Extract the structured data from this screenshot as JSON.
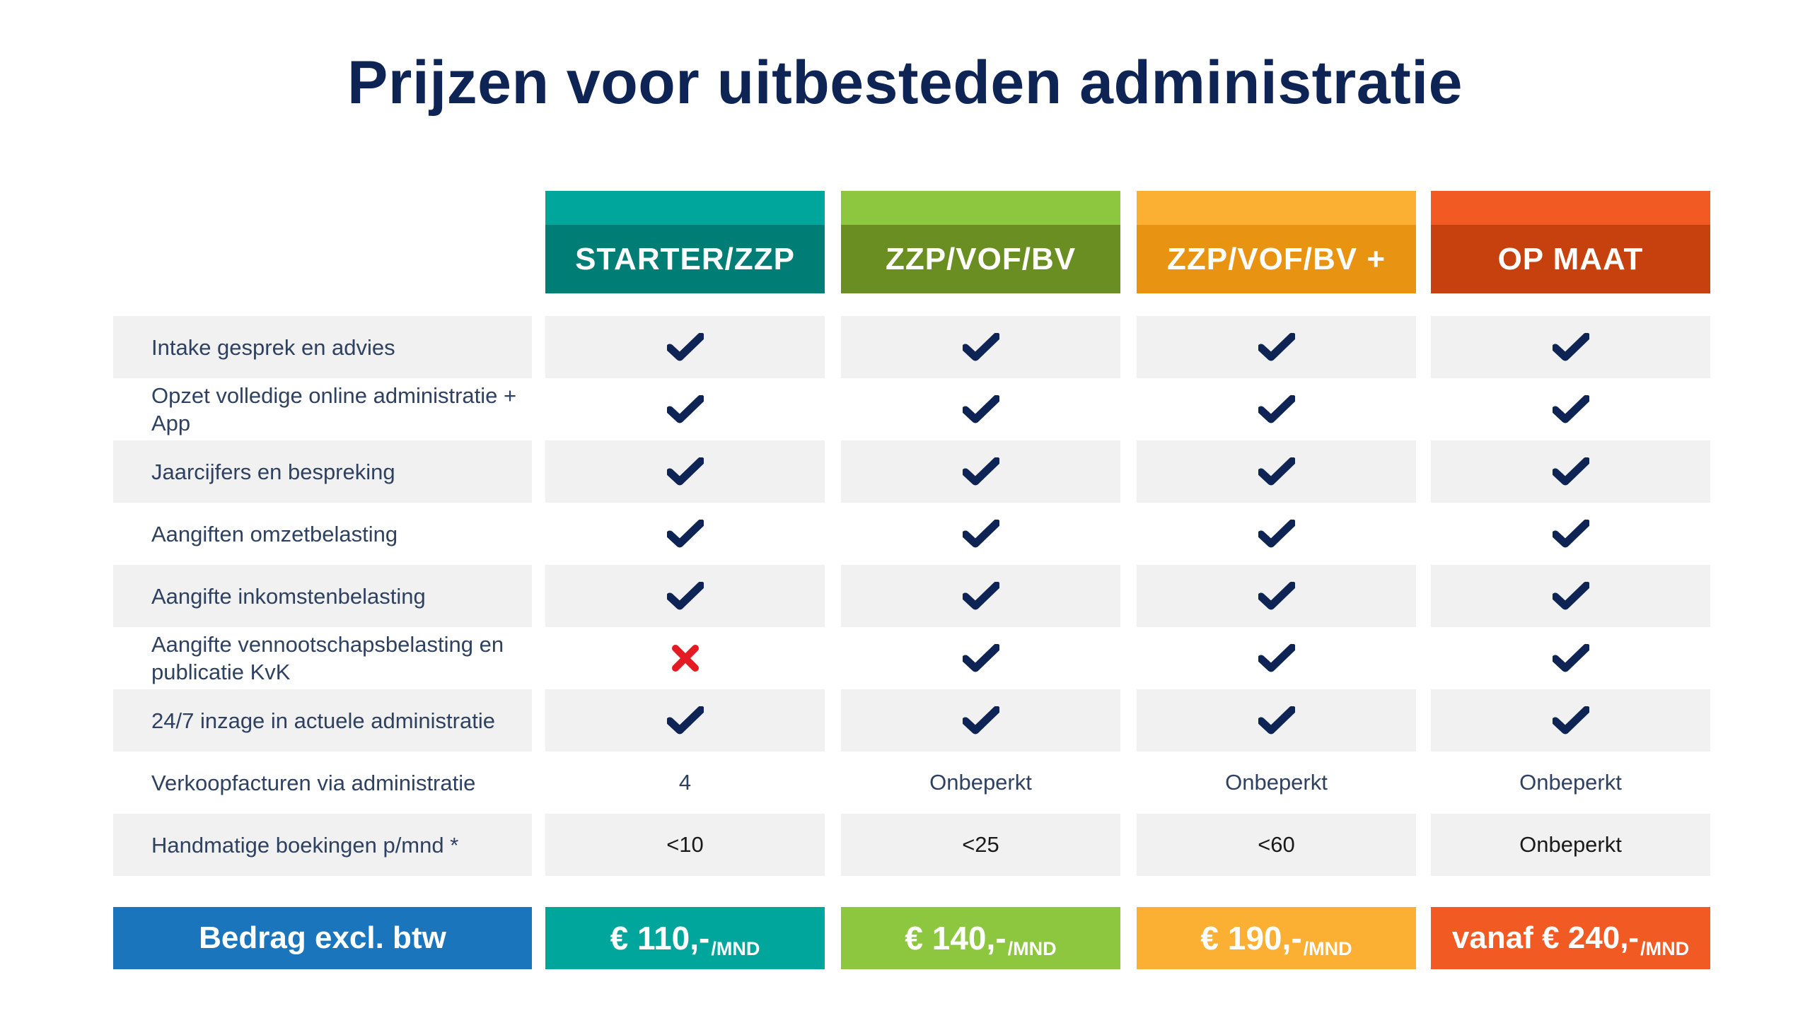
{
  "title": "Prijzen voor uitbesteden administratie",
  "icons": {
    "included": "checkmark-icon",
    "excluded": "cross-icon"
  },
  "colors": {
    "title": "#0d2455",
    "check": "#0d2455",
    "cross": "#e31b23",
    "row_shade": "#f1f1f1",
    "price_label_bg": "#1b75bc"
  },
  "plans": [
    {
      "name": "STARTER/ZZP",
      "top_color": "#00a69c",
      "header_color": "#007d74",
      "price": "€ 110,-",
      "unit": "/MND"
    },
    {
      "name": "ZZP/VOF/BV",
      "top_color": "#8dc63f",
      "header_color": "#6a8e22",
      "price": "€ 140,-",
      "unit": "/MND"
    },
    {
      "name": "ZZP/VOF/BV +",
      "top_color": "#fbb034",
      "header_color": "#e89312",
      "price": "€ 190,-",
      "unit": "/MND"
    },
    {
      "name": "OP MAAT",
      "top_color": "#f15a22",
      "header_color": "#c6410d",
      "price": "vanaf € 240,-",
      "unit": "/MND"
    }
  ],
  "features": [
    {
      "label": "Intake gesprek en advies",
      "values": [
        "check",
        "check",
        "check",
        "check"
      ]
    },
    {
      "label": "Opzet volledige online administratie + App",
      "values": [
        "check",
        "check",
        "check",
        "check"
      ]
    },
    {
      "label": "Jaarcijfers en bespreking",
      "values": [
        "check",
        "check",
        "check",
        "check"
      ]
    },
    {
      "label": "Aangiften omzetbelasting",
      "values": [
        "check",
        "check",
        "check",
        "check"
      ]
    },
    {
      "label": "Aangifte inkomstenbelasting",
      "values": [
        "check",
        "check",
        "check",
        "check"
      ]
    },
    {
      "label": "Aangifte vennootschapsbelasting en publicatie KvK",
      "values": [
        "cross",
        "check",
        "check",
        "check"
      ]
    },
    {
      "label": "24/7 inzage in actuele administratie",
      "values": [
        "check",
        "check",
        "check",
        "check"
      ]
    },
    {
      "label": "Verkoopfacturen via administratie",
      "values": [
        "4",
        "Onbeperkt",
        "Onbeperkt",
        "Onbeperkt"
      ]
    },
    {
      "label": "Handmatige boekingen p/mnd *",
      "values": [
        "<10",
        "<25",
        "<60",
        "Onbeperkt"
      ]
    }
  ],
  "price_label": "Bedrag excl. btw"
}
